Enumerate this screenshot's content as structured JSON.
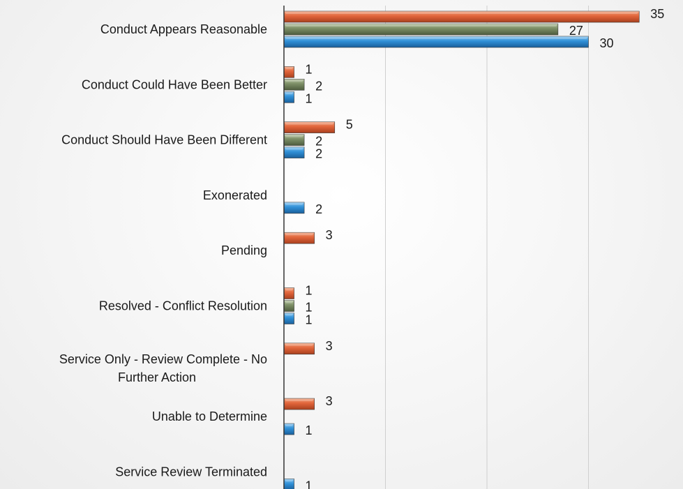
{
  "chart_data": {
    "type": "bar",
    "orientation": "horizontal",
    "categories": [
      "Conduct Appears Reasonable",
      "Conduct Could Have Been Better",
      "Conduct Should Have Been Different",
      "Exonerated",
      "Pending",
      "Resolved - Conflict Resolution",
      "Service Only - Review Complete - No Further Action",
      "Unable to Determine",
      "Service Review Terminated"
    ],
    "category_lines": [
      [
        "Conduct Appears Reasonable"
      ],
      [
        "Conduct Could Have Been Better"
      ],
      [
        "Conduct Should Have Been Different"
      ],
      [
        "Exonerated"
      ],
      [
        "Pending"
      ],
      [
        "Resolved - Conflict Resolution"
      ],
      [
        "Service Only - Review Complete - No",
        "Further Action"
      ],
      [
        "Unable to Determine"
      ],
      [
        "Service Review Terminated"
      ]
    ],
    "series": [
      {
        "color": "#e0643a",
        "values": [
          35,
          1,
          5,
          null,
          3,
          1,
          3,
          3,
          null
        ]
      },
      {
        "color": "#7a8c64",
        "values": [
          27,
          2,
          2,
          null,
          null,
          1,
          null,
          null,
          null
        ]
      },
      {
        "color": "#2f8fd6",
        "values": [
          30,
          1,
          2,
          2,
          null,
          1,
          null,
          1,
          1
        ]
      }
    ],
    "xlim": [
      0,
      40
    ],
    "grid": true,
    "legend": "none",
    "data_labels": true
  }
}
